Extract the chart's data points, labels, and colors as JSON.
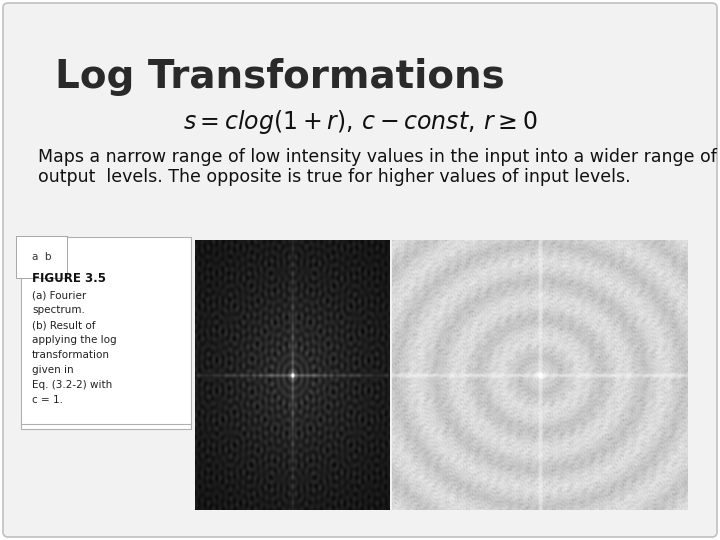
{
  "title": "Log Transformations",
  "formula": "$s = clog(1+r),\\, c - const,\\, r \\geq 0$",
  "body_text_line1": "Maps a narrow range of low intensity values in the input into a wider range of",
  "body_text_line2": "output  levels. The opposite is true for higher values of input levels.",
  "caption_ab": "a  b",
  "caption_title": "FIGURE 3.5",
  "caption_lines": [
    "(a) Fourier",
    "spectrum.",
    "(b) Result of",
    "applying the log",
    "transformation",
    "given in",
    "Eq. (3.2-2) with",
    "c = 1."
  ],
  "bg_color": "#ffffff",
  "slide_bg": "#f2f2f2",
  "title_fontsize": 28,
  "formula_fontsize": 17,
  "body_fontsize": 12.5,
  "caption_fontsize": 8.5
}
